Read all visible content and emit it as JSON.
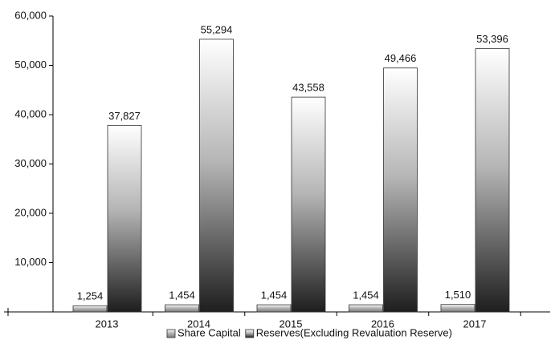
{
  "chart_data": {
    "type": "bar",
    "categories": [
      "2013",
      "2014",
      "2015",
      "2016",
      "2017"
    ],
    "series": [
      {
        "name": "Share Capital",
        "color": "#7a7a7a",
        "values": [
          1254,
          1454,
          1454,
          1454,
          1510
        ],
        "value_labels": [
          "1,254",
          "1,454",
          "1,454",
          "1,454",
          "1,510"
        ]
      },
      {
        "name": "Reserves(Excluding Revaluation Reserve)",
        "color": "#1e1e1e",
        "values": [
          37827,
          55294,
          43558,
          49466,
          53396
        ],
        "value_labels": [
          "37,827",
          "55,294",
          "43,558",
          "49,466",
          "53,396"
        ]
      }
    ],
    "ylim": [
      0,
      60000
    ],
    "yticks": [
      {
        "value": 0,
        "label": "-"
      },
      {
        "value": 10000,
        "label": "10,000"
      },
      {
        "value": 20000,
        "label": "20,000"
      },
      {
        "value": 30000,
        "label": "30,000"
      },
      {
        "value": 40000,
        "label": "40,000"
      },
      {
        "value": 50000,
        "label": "50,000"
      },
      {
        "value": 60000,
        "label": "60,000"
      }
    ],
    "legend": "bottom"
  }
}
